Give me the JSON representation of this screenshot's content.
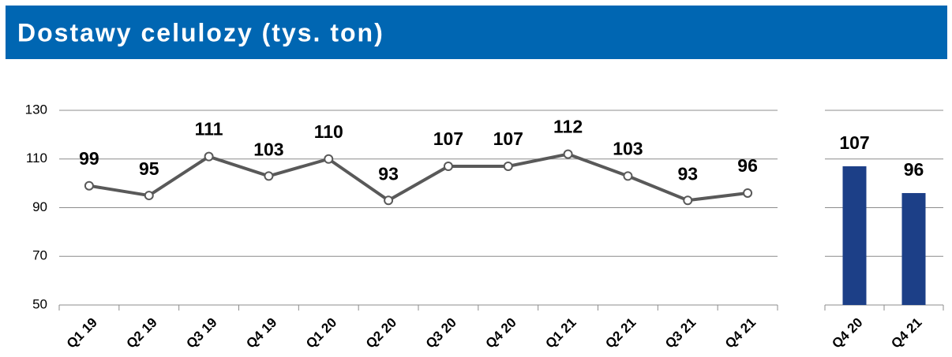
{
  "title": "Dostawy celulozy (tys. ton)",
  "chart_data": [
    {
      "type": "line",
      "categories": [
        "Q1 19",
        "Q2 19",
        "Q3 19",
        "Q4 19",
        "Q1 20",
        "Q2 20",
        "Q3 20",
        "Q4 20",
        "Q1 21",
        "Q2 21",
        "Q3 21",
        "Q4 21"
      ],
      "series": [
        {
          "name": null,
          "color": "#595959",
          "values": [
            99,
            95,
            111,
            103,
            110,
            93,
            107,
            107,
            112,
            103,
            93,
            96
          ]
        }
      ],
      "ylim": [
        50,
        130
      ],
      "yticks": [
        50,
        70,
        90,
        110,
        130
      ],
      "grid": true
    },
    {
      "type": "bar",
      "categories": [
        "Q4 20",
        "Q4 21"
      ],
      "values": [
        107,
        96
      ],
      "color": "#1c3f87",
      "ylim": [
        50,
        130
      ],
      "yticks": [
        50,
        70,
        90,
        110,
        130
      ],
      "grid": true
    }
  ]
}
